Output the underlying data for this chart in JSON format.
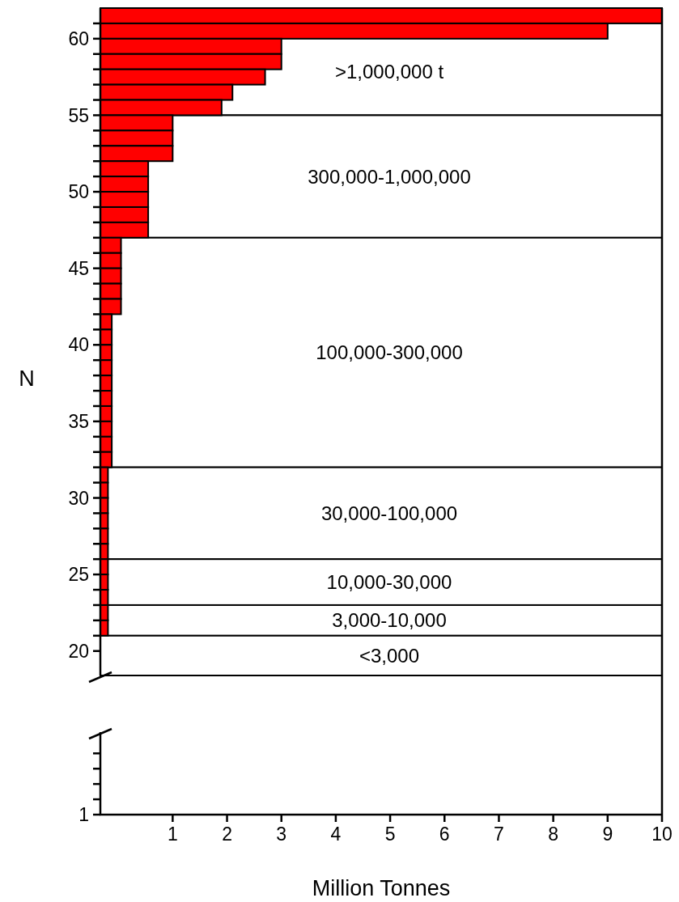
{
  "chart_data": [
    {
      "type": "bar",
      "orientation": "horizontal",
      "xlabel": "Million Tonnes",
      "ylabel": "N",
      "color": "#ff0000",
      "x": [
        61.5,
        60.5,
        59.5,
        58.5,
        57.5,
        56.5,
        55.5,
        54.5,
        53.5,
        52.5,
        51.5,
        50.5,
        49.5,
        48.5,
        47.5,
        46.5,
        45.5,
        44.5,
        43.5,
        42.5,
        41.5,
        40.5,
        39.5,
        38.5,
        37.5,
        36.5,
        35.5,
        34.5,
        33.5,
        32.5,
        31.5,
        30.5,
        29.5,
        28.5,
        27.5,
        26.5,
        25.5,
        24.5,
        23.5,
        22.5,
        21.5
      ],
      "base": [
        -0.33,
        -0.33,
        -0.33,
        -0.33,
        -0.33,
        -0.33,
        -0.33,
        -0.33,
        -0.33,
        -0.33,
        -0.33,
        -0.33,
        -0.33,
        -0.33,
        -0.33,
        -0.33,
        -0.33,
        -0.33,
        -0.33,
        -0.33,
        -0.33,
        -0.33,
        -0.33,
        -0.33,
        -0.33,
        -0.33,
        -0.33,
        -0.33,
        -0.33,
        -0.33,
        -0.33,
        -0.33,
        -0.33,
        -0.33,
        -0.33,
        -0.33,
        -0.33,
        -0.33,
        -0.33,
        -0.33,
        -0.33
      ],
      "values": [
        10.33,
        9.33,
        3.33,
        3.33,
        3.03,
        2.43,
        2.23,
        1.33,
        1.33,
        1.33,
        0.88,
        0.88,
        0.88,
        0.88,
        0.88,
        0.38,
        0.38,
        0.38,
        0.38,
        0.38,
        0.21,
        0.21,
        0.21,
        0.21,
        0.21,
        0.21,
        0.21,
        0.21,
        0.21,
        0.21,
        0.14,
        0.14,
        0.14,
        0.14,
        0.14,
        0.14,
        0.14,
        0.14,
        0.14,
        0.14,
        0.14
      ],
      "xlim": [
        -0.33,
        10
      ],
      "xticks": [
        1,
        2,
        3,
        4,
        5,
        6,
        7,
        8,
        9,
        10
      ],
      "ylim": [
        18.4,
        62
      ],
      "yticks": [
        20,
        {
          "value": 21,
          "label": null
        },
        {
          "value": 22,
          "label": null
        },
        {
          "value": 23,
          "label": null
        },
        {
          "value": 24,
          "label": null
        },
        25,
        {
          "value": 26,
          "label": null
        },
        {
          "value": 27,
          "label": null
        },
        {
          "value": 28,
          "label": null
        },
        {
          "value": 29,
          "label": null
        },
        30,
        {
          "value": 31,
          "label": null
        },
        {
          "value": 32,
          "label": null
        },
        {
          "value": 33,
          "label": null
        },
        {
          "value": 34,
          "label": null
        },
        35,
        {
          "value": 36,
          "label": null
        },
        {
          "value": 37,
          "label": null
        },
        {
          "value": 38,
          "label": null
        },
        {
          "value": 39,
          "label": null
        },
        40,
        {
          "value": 41,
          "label": null
        },
        {
          "value": 42,
          "label": null
        },
        {
          "value": 43,
          "label": null
        },
        {
          "value": 44,
          "label": null
        },
        45,
        {
          "value": 46,
          "label": null
        },
        {
          "value": 47,
          "label": null
        },
        {
          "value": 48,
          "label": null
        },
        {
          "value": 49,
          "label": null
        },
        50,
        {
          "value": 51,
          "label": null
        },
        {
          "value": 52,
          "label": null
        },
        {
          "value": 53,
          "label": null
        },
        {
          "value": 54,
          "label": null
        },
        55,
        {
          "value": 56,
          "label": null
        },
        {
          "value": 57,
          "label": null
        },
        {
          "value": 58,
          "label": null
        },
        {
          "value": 59,
          "label": null
        },
        60,
        {
          "value": 61,
          "label": null
        }
      ],
      "bands": [
        {
          "axis": "y",
          "from": 55,
          "to": 62,
          "label": ">1,000,000 t",
          "color": "#ffffff"
        },
        {
          "axis": "y",
          "from": 47,
          "to": 55,
          "label": "300,000-1,000,000",
          "color": "#ffffff"
        },
        {
          "axis": "y",
          "from": 32,
          "to": 47,
          "label": "100,000-300,000",
          "color": "#ffffff"
        },
        {
          "axis": "y",
          "from": 26,
          "to": 32,
          "label": "30,000-100,000",
          "color": "#ffffff"
        },
        {
          "axis": "y",
          "from": 23,
          "to": 26,
          "label": "10,000-30,000",
          "color": "#ffffff"
        },
        {
          "axis": "y",
          "from": 21,
          "to": 23,
          "label": "3,000-10,000",
          "color": "#ffffff"
        },
        {
          "axis": "y",
          "from": 18.4,
          "to": 21,
          "label": "<3,000",
          "color": "#ffffff"
        }
      ]
    },
    {
      "type": "other",
      "annotations": [
        "1"
      ]
    }
  ]
}
